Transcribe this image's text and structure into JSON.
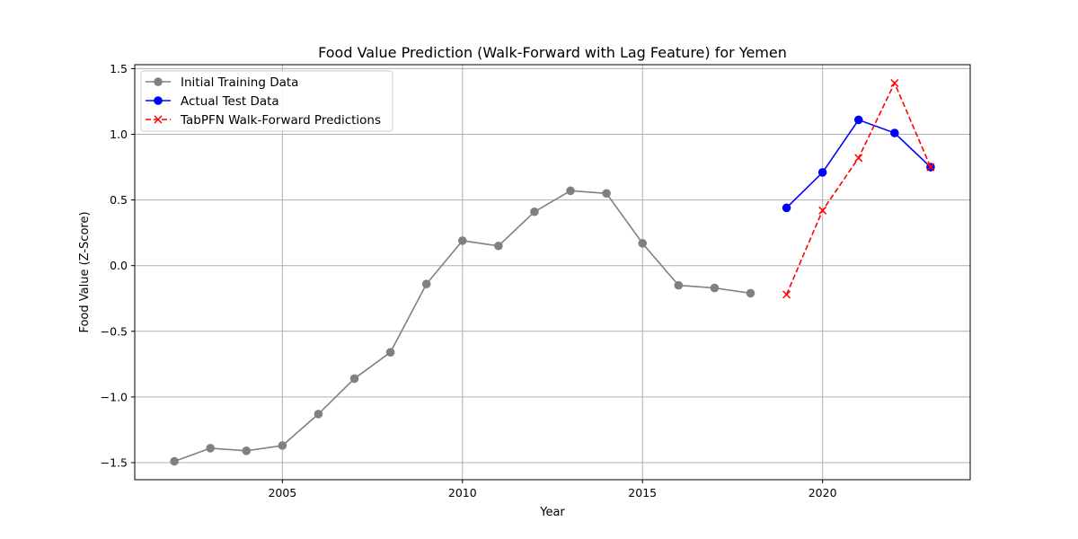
{
  "chart_data": {
    "type": "line",
    "title": "Food Value Prediction (Walk-Forward with Lag Feature) for Yemen",
    "xlabel": "Year",
    "ylabel": "Food Value (Z-Score)",
    "xlim": [
      2000.9,
      2024.1
    ],
    "ylim": [
      -1.63,
      1.53
    ],
    "x_ticks": [
      2005,
      2010,
      2015,
      2020
    ],
    "y_ticks": [
      -1.5,
      -1.0,
      -0.5,
      0.0,
      0.5,
      1.0,
      1.5
    ],
    "y_tick_labels": [
      "−1.5",
      "−1.0",
      "−0.5",
      "0.0",
      "0.5",
      "1.0",
      "1.5"
    ],
    "grid": true,
    "legend": "top-left",
    "series": [
      {
        "name": "Initial Training Data",
        "color": "#808080",
        "line_style": "solid",
        "marker": "circle",
        "x": [
          2002,
          2003,
          2004,
          2005,
          2006,
          2007,
          2008,
          2009,
          2010,
          2011,
          2012,
          2013,
          2014,
          2015,
          2016,
          2017,
          2018
        ],
        "y": [
          -1.49,
          -1.39,
          -1.41,
          -1.37,
          -1.13,
          -0.86,
          -0.66,
          -0.14,
          0.19,
          0.15,
          0.41,
          0.57,
          0.55,
          0.17,
          -0.15,
          -0.17,
          -0.21
        ]
      },
      {
        "name": "Actual Test Data",
        "color": "#0000ff",
        "line_style": "solid",
        "marker": "circle",
        "x": [
          2019,
          2020,
          2021,
          2022,
          2023
        ],
        "y": [
          0.44,
          0.71,
          1.11,
          1.01,
          0.75
        ]
      },
      {
        "name": "TabPFN Walk-Forward Predictions",
        "color": "#ff0000",
        "line_style": "dashed",
        "marker": "x",
        "x": [
          2019,
          2020,
          2021,
          2022,
          2023
        ],
        "y": [
          -0.22,
          0.42,
          0.82,
          1.39,
          0.75
        ]
      }
    ]
  }
}
